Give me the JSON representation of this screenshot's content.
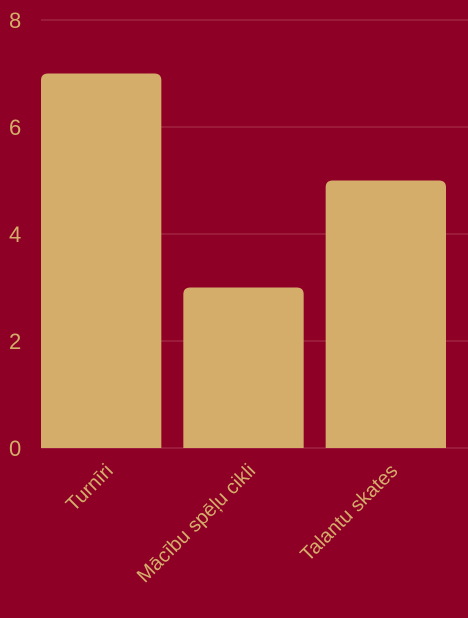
{
  "colors": {
    "background": "#8e0026",
    "bar": "#d4ad6a",
    "text": "#d4ad6a",
    "grid": "#a9334f"
  },
  "chart_data": {
    "type": "bar",
    "title": "",
    "xlabel": "",
    "ylabel": "",
    "categories": [
      "Turnīri",
      "Mācību spēļu cikli",
      "Talantu skates"
    ],
    "values": [
      7,
      3,
      5
    ],
    "ylim": [
      0,
      8
    ],
    "yticks": [
      0,
      2,
      4,
      6,
      8
    ],
    "grid": true,
    "legend": "none"
  }
}
